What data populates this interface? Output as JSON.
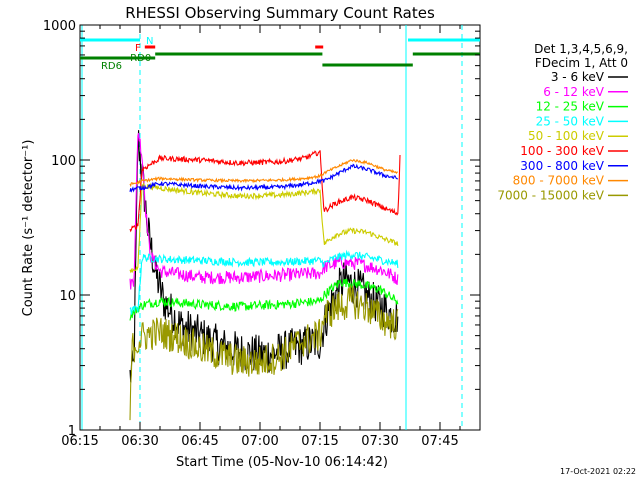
{
  "chart_data": {
    "type": "line",
    "title": "RHESSI Observing Summary Count Rates",
    "xlabel": "Start Time (05-Nov-10 06:14:42)",
    "ylabel": "Count Rate (s⁻¹ detector⁻¹)",
    "yscale": "log",
    "ylim": [
      1,
      1000
    ],
    "xlim_minutes": [
      0,
      100
    ],
    "x_ticks": [
      {
        "t": 0,
        "label": "06:15"
      },
      {
        "t": 15,
        "label": "06:30"
      },
      {
        "t": 30,
        "label": "06:45"
      },
      {
        "t": 45,
        "label": "07:00"
      },
      {
        "t": 60,
        "label": "07:15"
      },
      {
        "t": 75,
        "label": "07:30"
      },
      {
        "t": 90,
        "label": "07:45"
      }
    ],
    "y_ticks": [
      {
        "v": 1,
        "label": "1"
      },
      {
        "v": 10,
        "label": "10"
      },
      {
        "v": 100,
        "label": "100"
      },
      {
        "v": 1000,
        "label": "1000"
      }
    ],
    "legend": {
      "position": "top-right",
      "header": [
        "Det 1,3,4,5,6,9,",
        "FDecim 1, Att 0"
      ]
    },
    "series": [
      {
        "name": "3 - 6 keV",
        "color": "#000000",
        "noise": 0.3,
        "points": [
          [
            12.5,
            2.5
          ],
          [
            13.5,
            3
          ],
          [
            14.5,
            150
          ],
          [
            15.5,
            80
          ],
          [
            17,
            30
          ],
          [
            19,
            14
          ],
          [
            21,
            9
          ],
          [
            25,
            6
          ],
          [
            30,
            5
          ],
          [
            35,
            4.2
          ],
          [
            40,
            3.8
          ],
          [
            45,
            3.6
          ],
          [
            50,
            3.8
          ],
          [
            55,
            4.2
          ],
          [
            60,
            4.5
          ],
          [
            61,
            6
          ],
          [
            63,
            9
          ],
          [
            66,
            13
          ],
          [
            70,
            11
          ],
          [
            73,
            9
          ],
          [
            76,
            8
          ],
          [
            78,
            7
          ],
          [
            79.5,
            7
          ]
        ]
      },
      {
        "name": "6 - 12 keV",
        "color": "#ff00ff",
        "noise": 0.1,
        "points": [
          [
            12.5,
            12
          ],
          [
            13.5,
            13
          ],
          [
            14.5,
            170
          ],
          [
            15.5,
            110
          ],
          [
            16.5,
            40
          ],
          [
            17.5,
            20
          ],
          [
            20,
            15
          ],
          [
            30,
            13.5
          ],
          [
            40,
            13.5
          ],
          [
            50,
            14
          ],
          [
            60,
            14.5
          ],
          [
            61,
            16
          ],
          [
            65,
            17.5
          ],
          [
            70,
            17
          ],
          [
            75,
            15.5
          ],
          [
            78,
            14
          ],
          [
            79.5,
            13
          ]
        ]
      },
      {
        "name": "12 - 25 keV",
        "color": "#00ff00",
        "noise": 0.07,
        "points": [
          [
            12.5,
            7
          ],
          [
            14.5,
            8
          ],
          [
            16,
            8.5
          ],
          [
            20,
            9
          ],
          [
            30,
            8.5
          ],
          [
            40,
            8.2
          ],
          [
            50,
            8.5
          ],
          [
            60,
            9
          ],
          [
            61,
            10
          ],
          [
            65,
            12.5
          ],
          [
            70,
            12
          ],
          [
            75,
            11
          ],
          [
            78,
            9.5
          ],
          [
            79.5,
            9
          ]
        ]
      },
      {
        "name": "25 - 50 keV",
        "color": "#00ffff",
        "noise": 0.06,
        "points": [
          [
            12.5,
            7.5
          ],
          [
            14.5,
            8
          ],
          [
            15.5,
            19
          ],
          [
            20,
            18.5
          ],
          [
            30,
            18
          ],
          [
            40,
            17.5
          ],
          [
            50,
            17.5
          ],
          [
            60,
            18
          ],
          [
            61,
            17
          ],
          [
            64,
            19
          ],
          [
            68,
            20
          ],
          [
            72,
            19
          ],
          [
            76,
            18
          ],
          [
            79.5,
            17
          ]
        ]
      },
      {
        "name": "50 - 100 keV",
        "color": "#cccc00",
        "noise": 0.04,
        "points": [
          [
            12.5,
            15
          ],
          [
            14.5,
            16
          ],
          [
            15.5,
            65
          ],
          [
            20,
            62
          ],
          [
            30,
            57
          ],
          [
            40,
            54
          ],
          [
            50,
            55
          ],
          [
            58,
            58
          ],
          [
            60,
            60
          ],
          [
            61,
            24
          ],
          [
            64,
            28
          ],
          [
            68,
            30
          ],
          [
            72,
            29
          ],
          [
            76,
            26
          ],
          [
            79.5,
            24
          ]
        ]
      },
      {
        "name": "100 - 300 keV",
        "color": "#ff0000",
        "noise": 0.04,
        "points": [
          [
            12.5,
            30
          ],
          [
            14.5,
            33
          ],
          [
            15.5,
            85
          ],
          [
            20,
            103
          ],
          [
            30,
            100
          ],
          [
            40,
            95
          ],
          [
            50,
            97
          ],
          [
            56,
            103
          ],
          [
            60,
            115
          ],
          [
            61,
            42
          ],
          [
            64,
            48
          ],
          [
            68,
            53
          ],
          [
            72,
            50
          ],
          [
            76,
            44
          ],
          [
            79.5,
            40
          ],
          [
            80,
            110
          ]
        ]
      },
      {
        "name": "300 - 800 keV",
        "color": "#0000ff",
        "noise": 0.03,
        "points": [
          [
            12.5,
            60
          ],
          [
            14.5,
            62
          ],
          [
            15.5,
            62
          ],
          [
            20,
            67
          ],
          [
            30,
            64
          ],
          [
            40,
            62
          ],
          [
            50,
            63
          ],
          [
            56,
            66
          ],
          [
            60,
            70
          ],
          [
            61,
            70
          ],
          [
            64,
            78
          ],
          [
            68,
            90
          ],
          [
            72,
            85
          ],
          [
            76,
            77
          ],
          [
            79.5,
            73
          ]
        ]
      },
      {
        "name": "800 - 7000 keV",
        "color": "#ff8800",
        "noise": 0.02,
        "points": [
          [
            12.5,
            66
          ],
          [
            14.5,
            68
          ],
          [
            15.5,
            70
          ],
          [
            20,
            73
          ],
          [
            30,
            71
          ],
          [
            40,
            70
          ],
          [
            50,
            71
          ],
          [
            56,
            73
          ],
          [
            60,
            76
          ],
          [
            61,
            80
          ],
          [
            64,
            88
          ],
          [
            68,
            100
          ],
          [
            72,
            95
          ],
          [
            76,
            85
          ],
          [
            79.5,
            80
          ]
        ]
      },
      {
        "name": "7000 - 15000 keV",
        "color": "#999900",
        "noise": 0.25,
        "points": [
          [
            12.5,
            1.2
          ],
          [
            13,
            4
          ],
          [
            14.5,
            4.5
          ],
          [
            16,
            5
          ],
          [
            20,
            5.3
          ],
          [
            25,
            4.8
          ],
          [
            30,
            4
          ],
          [
            35,
            3.6
          ],
          [
            40,
            3.2
          ],
          [
            45,
            3.2
          ],
          [
            50,
            3.5
          ],
          [
            55,
            4.5
          ],
          [
            60,
            5
          ],
          [
            61,
            7
          ],
          [
            64,
            8
          ],
          [
            68,
            9
          ],
          [
            72,
            8
          ],
          [
            76,
            6.5
          ],
          [
            79.5,
            6
          ]
        ]
      }
    ],
    "flag_bars": [
      {
        "label": "N",
        "color": "#00ffff",
        "segments": [
          [
            0,
            15
          ],
          [
            82,
            100
          ]
        ],
        "row": 0
      },
      {
        "label": "F",
        "color": "#ff0000",
        "segments": [
          [
            16.2,
            18.8
          ],
          [
            58.8,
            60.8
          ]
        ],
        "row": 1
      },
      {
        "label": "RD0",
        "color": "#008000",
        "segments": [
          [
            18.8,
            60.6
          ],
          [
            83.2,
            100
          ]
        ],
        "row": 2
      },
      {
        "label": "",
        "color": "#008000",
        "segments": [
          [
            0,
            18.8
          ]
        ],
        "row": 3
      },
      {
        "label": "RD6",
        "color": "#008000",
        "segments": [
          [
            60.6,
            83.2
          ]
        ],
        "row": 4
      }
    ],
    "marker_lines": [
      {
        "t": 0.5,
        "style": "solid",
        "color": "#00ffff"
      },
      {
        "t": 15,
        "style": "dashed",
        "color": "#00ffff"
      },
      {
        "t": 81.5,
        "style": "solid",
        "color": "#00ffff"
      },
      {
        "t": 95.5,
        "style": "dashed",
        "color": "#00ffff"
      }
    ],
    "timestamp": "17-Oct-2021 02:22"
  }
}
